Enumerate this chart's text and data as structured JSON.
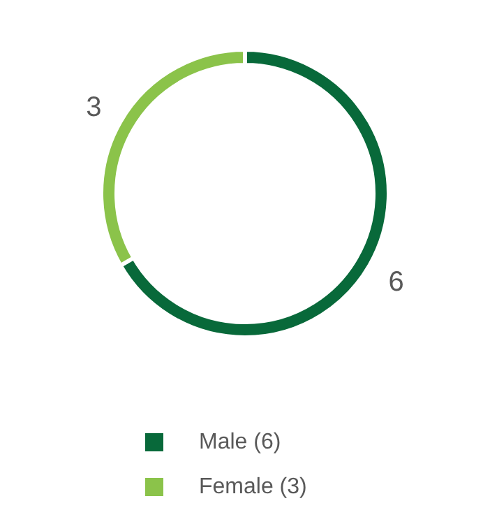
{
  "chart_data": {
    "type": "donut",
    "categories": [
      "Male (6)",
      "Female (3)"
    ],
    "values": [
      6,
      3
    ],
    "colors": [
      "#08693a",
      "#8bc34a"
    ],
    "data_labels": true,
    "legend": "bottom"
  }
}
